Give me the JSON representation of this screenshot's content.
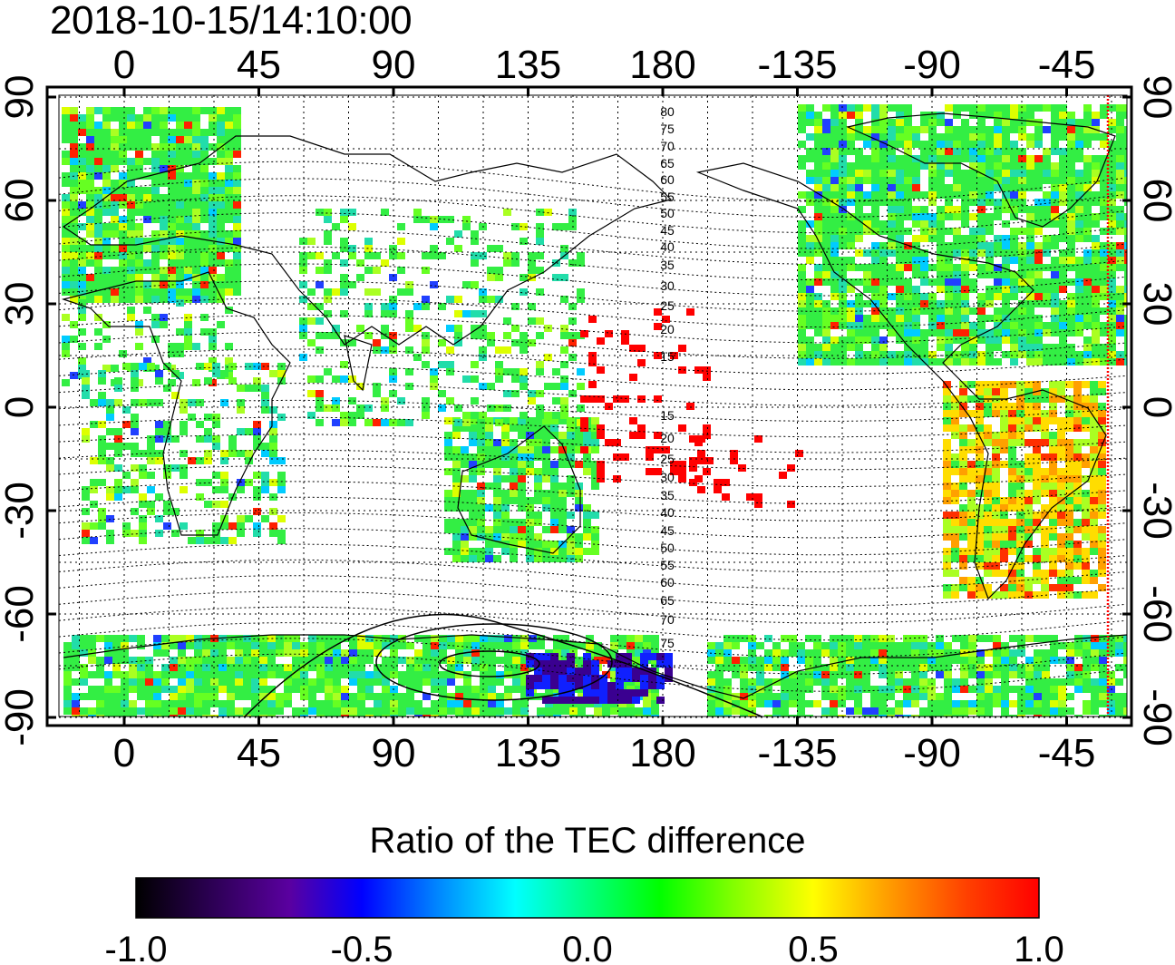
{
  "title": "2018-10-15/14:10:00",
  "map": {
    "lon_ticks": [
      "0",
      "45",
      "90",
      "135",
      "180",
      "-135",
      "-90",
      "-45"
    ],
    "lat_ticks": [
      "90",
      "60",
      "30",
      "0",
      "-30",
      "-60",
      "-90"
    ],
    "contour_labels": [
      "80",
      "75",
      "70",
      "65",
      "60",
      "55",
      "50",
      "45",
      "40",
      "35",
      "30",
      "25",
      "20",
      "15",
      "15",
      "20",
      "25",
      "30",
      "35",
      "40",
      "45",
      "50",
      "55",
      "60",
      "65",
      "70",
      "75"
    ],
    "terminator_color": "#ff0000"
  },
  "colorbar": {
    "title": "Ratio of the TEC difference",
    "tick_labels": [
      "-1.0",
      "-0.5",
      "0.0",
      "0.5",
      "1.0"
    ],
    "range": [
      -1.0,
      1.0
    ],
    "colors": [
      "#000000",
      "#2a0050",
      "#5a00a0",
      "#0000ff",
      "#0080ff",
      "#00ffff",
      "#00ff80",
      "#00ff00",
      "#80ff00",
      "#ffff00",
      "#ffa000",
      "#ff4000",
      "#ff0000"
    ]
  }
}
